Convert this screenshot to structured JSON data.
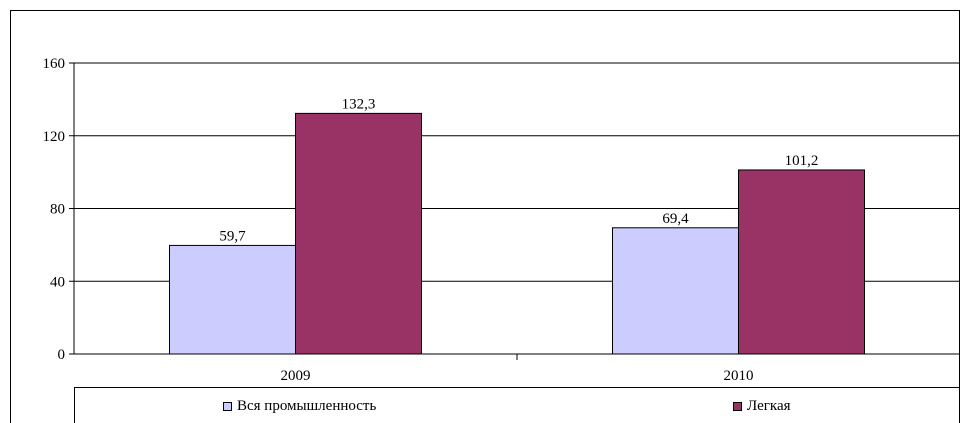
{
  "chart_data": {
    "type": "bar",
    "categories": [
      "2009",
      "2010"
    ],
    "series": [
      {
        "name": "Вся промышленность",
        "values": [
          59.7,
          69.4
        ],
        "labels": [
          "59,7",
          "69,4"
        ],
        "color": "#ccccff"
      },
      {
        "name": "Легкая",
        "values": [
          132.3,
          101.2
        ],
        "labels": [
          "132,3",
          "101,2"
        ],
        "color": "#993366"
      }
    ],
    "ylim": [
      0,
      160
    ],
    "yticks": [
      "0",
      "40",
      "80",
      "120",
      "160"
    ],
    "ytick_values": [
      0,
      40,
      80,
      120,
      160
    ],
    "grid": true,
    "legend_position": "bottom"
  }
}
